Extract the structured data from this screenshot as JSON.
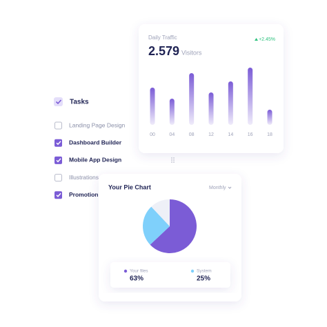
{
  "tasks": {
    "title": "Tasks",
    "items": [
      {
        "label": "Landing Page Design",
        "checked": false
      },
      {
        "label": "Dashboard Builder",
        "checked": true
      },
      {
        "label": "Mobile App Design",
        "checked": true
      },
      {
        "label": "Illustrations",
        "checked": false
      },
      {
        "label": "Promotion",
        "checked": true
      }
    ]
  },
  "chart_data": [
    {
      "type": "bar",
      "title": "Daily Traffic",
      "headline": "2.579",
      "headline_unit": "Visitors",
      "change": "+2.45%",
      "categories": [
        "00",
        "04",
        "08",
        "12",
        "14",
        "16",
        "18"
      ],
      "values": [
        54,
        38,
        75,
        47,
        63,
        83,
        22
      ],
      "ylim": [
        0,
        100
      ],
      "color": "#7b5cd6"
    },
    {
      "type": "pie",
      "title": "Your Pie Chart",
      "filter": "Monthly",
      "categories": [
        "Your files",
        "System",
        null
      ],
      "values": [
        63,
        25,
        12
      ],
      "value_labels": [
        "63%",
        "25%",
        null
      ],
      "colors": [
        "#7b5cd6",
        "#7fd0fb",
        "#eef0f7"
      ]
    }
  ]
}
